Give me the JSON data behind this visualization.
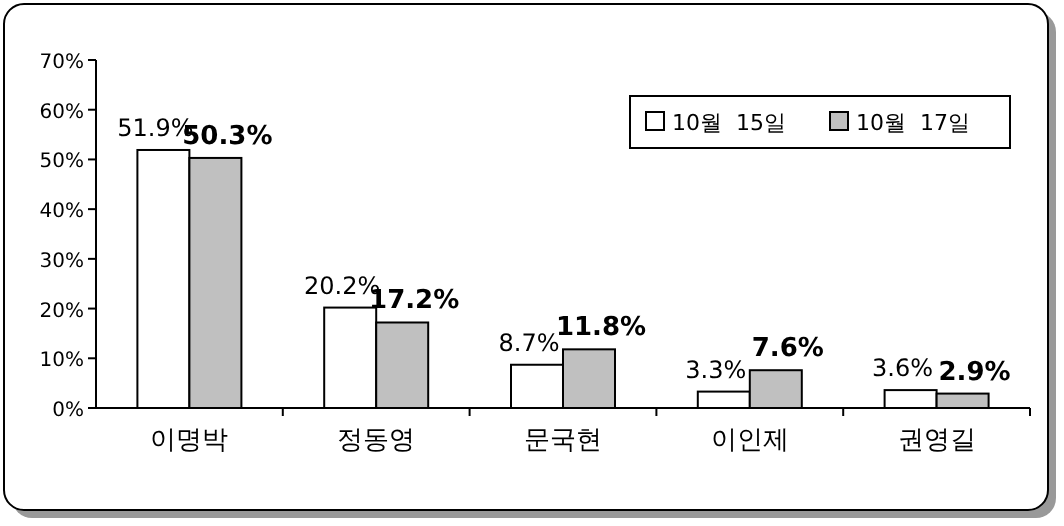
{
  "chart_data": {
    "type": "bar",
    "categories": [
      "이명박",
      "정동영",
      "문국현",
      "이인제",
      "권영길"
    ],
    "series": [
      {
        "name": "10월  15일",
        "color": "#ffffff",
        "values": [
          51.9,
          20.2,
          8.7,
          3.3,
          3.6
        ],
        "value_labels": [
          "51.9%",
          "20.2%",
          "8.7%",
          "3.3%",
          "3.6%"
        ]
      },
      {
        "name": "10월  17일",
        "color": "#c0c0c0",
        "values": [
          50.3,
          17.2,
          11.8,
          7.6,
          2.9
        ],
        "value_labels": [
          "50.3%",
          "17.2%",
          "11.8%",
          "7.6%",
          "2.9%"
        ]
      }
    ],
    "ylim": [
      0,
      70
    ],
    "yticks": [
      {
        "value": 0,
        "label": "0%"
      },
      {
        "value": 10,
        "label": "10%"
      },
      {
        "value": 20,
        "label": "20%"
      },
      {
        "value": 30,
        "label": "30%"
      },
      {
        "value": 40,
        "label": "40%"
      },
      {
        "value": 50,
        "label": "50%"
      },
      {
        "value": 60,
        "label": "60%"
      },
      {
        "value": 70,
        "label": "70%"
      }
    ],
    "legend": "top right"
  }
}
